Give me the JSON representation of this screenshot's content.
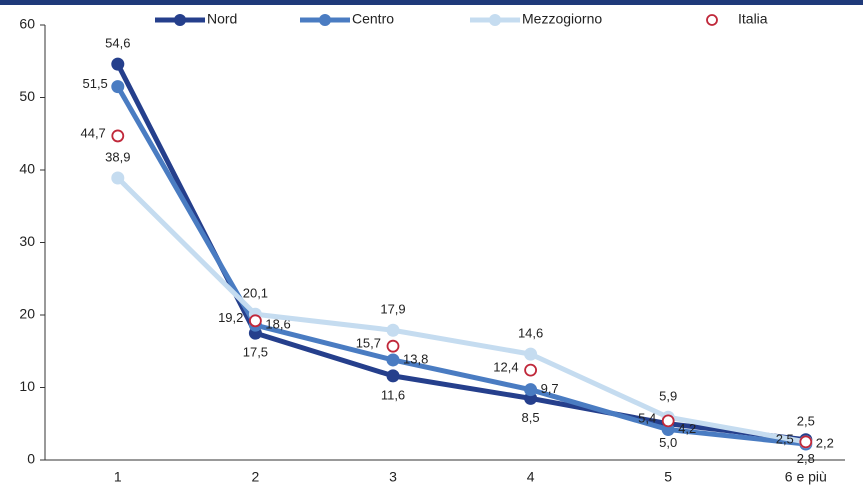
{
  "chart_data": {
    "type": "line",
    "categories": [
      "1",
      "2",
      "3",
      "4",
      "5",
      "6 e più"
    ],
    "ylim": [
      0,
      60
    ],
    "yticks": [
      0,
      10,
      20,
      30,
      40,
      50,
      60
    ],
    "legend": "top",
    "series": [
      {
        "name": "Nord",
        "color": "#253f8c",
        "values": [
          54.6,
          17.5,
          11.6,
          8.5,
          5.0,
          2.8
        ],
        "value_labels": [
          "54,6",
          "17,5",
          "11,6",
          "8,5",
          "5,0",
          "2,8"
        ]
      },
      {
        "name": "Centro",
        "color": "#4a7cc2",
        "values": [
          51.5,
          18.6,
          13.8,
          9.7,
          4.2,
          2.2
        ],
        "value_labels": [
          "51,5",
          "18,6",
          "13,8",
          "9,7",
          "4,2",
          "2,2"
        ]
      },
      {
        "name": "Mezzogiorno",
        "color": "#c5dcf0",
        "values": [
          38.9,
          20.1,
          17.9,
          14.6,
          5.9,
          2.5
        ],
        "value_labels": [
          "38,9",
          "20,1",
          "17,9",
          "14,6",
          "5,9",
          "2,5"
        ]
      },
      {
        "name": "Italia",
        "color": "#c0283a",
        "marker_only": true,
        "values": [
          44.7,
          19.2,
          15.7,
          12.4,
          5.4,
          2.5
        ],
        "value_labels": [
          "44,7",
          "19,2",
          "15,7",
          "12,4",
          "5,4",
          "2,5"
        ]
      }
    ]
  }
}
